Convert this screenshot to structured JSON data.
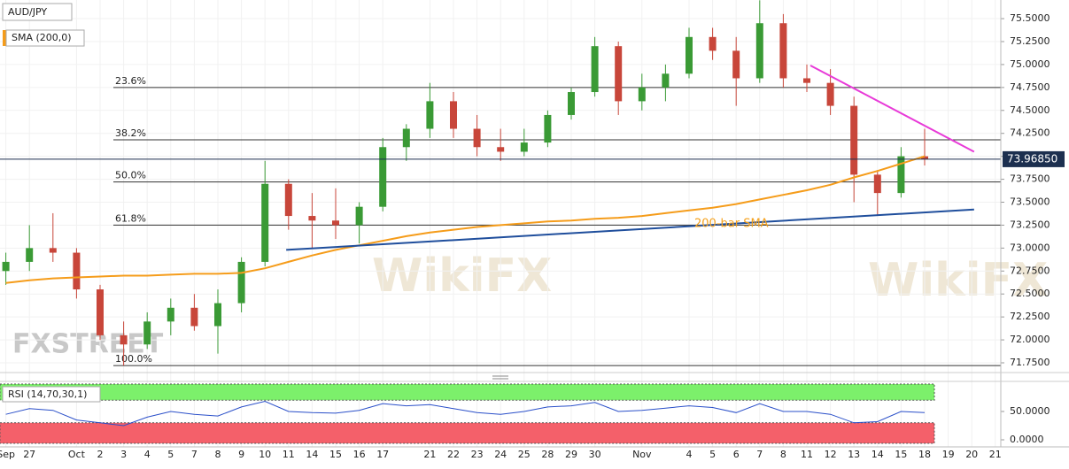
{
  "chart_data": {
    "type": "candlestick",
    "categories": [
      "Sep",
      "27",
      null,
      "Oct",
      "2",
      "3",
      "4",
      "5",
      "7",
      "8",
      "9",
      "10",
      "11",
      "14",
      "15",
      "16",
      "17",
      null,
      "21",
      "22",
      "23",
      "24",
      "25",
      "28",
      "29",
      "30",
      null,
      "Nov",
      null,
      "4",
      "5",
      "6",
      "7",
      "8",
      "11",
      "12",
      "13",
      "14",
      "15",
      "18",
      "19",
      "20",
      "21"
    ],
    "series": [
      {
        "name": "AUD/JPY",
        "type": "candlestick",
        "up_color": "#3a9a35",
        "down_color": "#c8463a",
        "open": [
          72.75,
          72.85,
          73.0,
          72.95,
          72.55,
          72.05,
          71.95,
          72.2,
          72.35,
          72.15,
          72.4,
          72.85,
          73.7,
          73.35,
          73.3,
          73.25,
          73.45,
          74.1,
          74.3,
          74.6,
          74.3,
          74.1,
          74.05,
          74.15,
          74.45,
          74.7,
          75.2,
          74.6,
          74.75,
          74.9,
          75.3,
          75.15,
          74.85,
          75.45,
          74.85,
          74.8,
          74.55,
          73.8,
          73.6,
          74.0,
          null,
          null,
          null
        ],
        "high": [
          72.95,
          73.25,
          73.38,
          73.0,
          72.6,
          72.2,
          72.3,
          72.45,
          72.5,
          72.55,
          72.9,
          73.95,
          73.75,
          73.6,
          73.65,
          73.5,
          74.2,
          74.35,
          74.8,
          74.7,
          74.45,
          74.3,
          74.3,
          74.5,
          74.75,
          75.3,
          75.25,
          74.9,
          75.0,
          75.4,
          75.4,
          75.3,
          75.7,
          75.55,
          75.0,
          74.95,
          74.65,
          73.85,
          74.1,
          74.3,
          null,
          null,
          null
        ],
        "low": [
          72.6,
          72.75,
          72.85,
          72.45,
          72.0,
          71.72,
          71.9,
          72.05,
          72.1,
          71.85,
          72.3,
          72.8,
          73.2,
          73.0,
          73.1,
          73.05,
          73.4,
          73.95,
          74.2,
          74.2,
          74.0,
          73.95,
          74.0,
          74.1,
          74.4,
          74.65,
          74.45,
          74.5,
          74.6,
          74.85,
          75.05,
          74.55,
          74.8,
          74.75,
          74.7,
          74.45,
          73.5,
          73.35,
          73.55,
          73.9,
          null,
          null,
          null
        ],
        "close": [
          72.85,
          73.0,
          72.95,
          72.55,
          72.05,
          71.95,
          72.2,
          72.35,
          72.15,
          72.4,
          72.85,
          73.7,
          73.35,
          73.3,
          73.25,
          73.45,
          74.1,
          74.3,
          74.6,
          74.3,
          74.1,
          74.05,
          74.15,
          74.45,
          74.7,
          75.2,
          74.6,
          74.75,
          74.9,
          75.3,
          75.15,
          74.85,
          75.45,
          74.85,
          74.8,
          74.55,
          73.8,
          73.6,
          74.0,
          73.97,
          null,
          null,
          null
        ]
      },
      {
        "name": "SMA (200,0)",
        "type": "line",
        "color": "#f59c1a",
        "values": [
          72.62,
          72.65,
          72.67,
          72.68,
          72.69,
          72.7,
          72.7,
          72.71,
          72.72,
          72.72,
          72.73,
          72.78,
          72.85,
          72.92,
          72.98,
          73.03,
          73.08,
          73.13,
          73.17,
          73.2,
          73.23,
          73.25,
          73.27,
          73.29,
          73.3,
          73.32,
          73.33,
          73.35,
          73.38,
          73.41,
          73.44,
          73.48,
          73.53,
          73.58,
          73.63,
          73.69,
          73.77,
          73.84,
          73.92,
          74.0,
          null,
          null,
          null
        ]
      }
    ],
    "ylim": [
      71.644,
      75.703
    ],
    "yticks": [
      {
        "value": 71.75,
        "label": "71.7500"
      },
      {
        "value": 72.0,
        "label": "72.0000"
      },
      {
        "value": 72.25,
        "label": "72.2500"
      },
      {
        "value": 72.5,
        "label": "72.5000"
      },
      {
        "value": 72.75,
        "label": "72.7500"
      },
      {
        "value": 73.0,
        "label": "73.0000"
      },
      {
        "value": 73.25,
        "label": "73.2500"
      },
      {
        "value": 73.5,
        "label": "73.5000"
      },
      {
        "value": 73.75,
        "label": "73.7500"
      },
      {
        "value": 74.0,
        "label": "74.0000"
      },
      {
        "value": 74.25,
        "label": "74.2500"
      },
      {
        "value": 74.5,
        "label": "74.5000"
      },
      {
        "value": 74.75,
        "label": "74.7500"
      },
      {
        "value": 75.0,
        "label": "75.0000"
      },
      {
        "value": 75.25,
        "label": "75.2500"
      },
      {
        "value": 75.5,
        "label": "75.5000"
      }
    ],
    "fib_levels": [
      {
        "value": 74.75,
        "label": "23.6%"
      },
      {
        "value": 74.18,
        "label": "38.2%"
      },
      {
        "value": 73.72,
        "label": "50.0%"
      },
      {
        "value": 73.25,
        "label": "61.8%"
      },
      {
        "value": 71.72,
        "label": "100.0%"
      }
    ],
    "trendlines": [
      {
        "color": "#1f4e9c",
        "x": [
          11.9,
          41.1
        ],
        "y": [
          72.98,
          73.42
        ]
      },
      {
        "color": "#e83ad8",
        "x": [
          34.15,
          41.1
        ],
        "y": [
          74.99,
          74.05
        ]
      }
    ],
    "annotations": [
      "200-bar SMA"
    ],
    "last_price": {
      "value": 73.9685,
      "label": "73.96850"
    },
    "watermarks": [
      "FXSTREET",
      "WikiFX"
    ],
    "rsi": {
      "name": "RSI (14,70,30,1)",
      "color": "#2a4fc9",
      "values": [
        45,
        55,
        52,
        35,
        30,
        25,
        40,
        50,
        45,
        42,
        58,
        68,
        50,
        48,
        47,
        52,
        64,
        60,
        62,
        55,
        48,
        45,
        50,
        58,
        60,
        66,
        50,
        52,
        56,
        60,
        57,
        48,
        64,
        50,
        50,
        45,
        30,
        32,
        50,
        48,
        null,
        null,
        null
      ],
      "ylim": [
        -12.5,
        101.6
      ],
      "yticks": [
        {
          "value": 0,
          "label": "0.0000"
        },
        {
          "value": 50,
          "label": "50.0000"
        }
      ],
      "overbought": 70,
      "oversold": 30,
      "overbought_color": "#7cf06b",
      "oversold_color": "#f4606a"
    }
  }
}
